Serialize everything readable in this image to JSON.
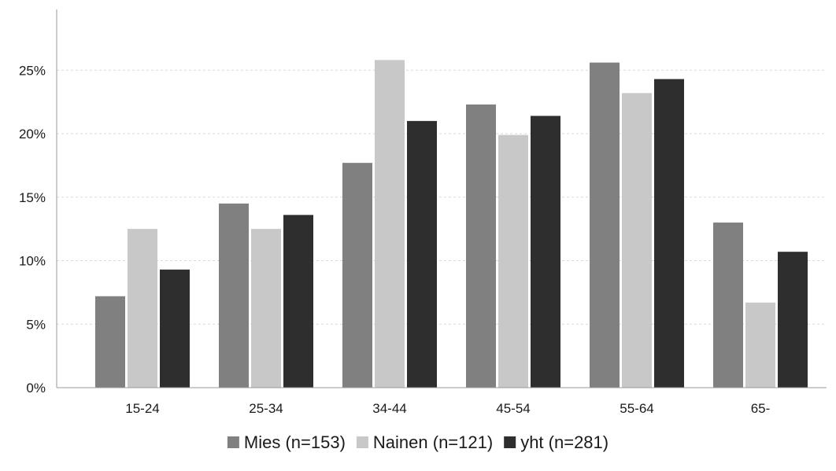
{
  "chart_data": {
    "type": "bar",
    "title": "",
    "xlabel": "",
    "ylabel": "",
    "categories": [
      "15-24",
      "25-34",
      "34-44",
      "45-54",
      "55-64",
      "65-"
    ],
    "series": [
      {
        "name": "Mies (n=153)",
        "color": "#808080",
        "values": [
          7.2,
          14.5,
          17.7,
          22.3,
          25.6,
          13.0
        ]
      },
      {
        "name": "Nainen (n=121)",
        "color": "#c8c8c8",
        "values": [
          12.5,
          12.5,
          25.8,
          19.9,
          23.2,
          6.7
        ]
      },
      {
        "name": "yht (n=281)",
        "color": "#2e2e2e",
        "values": [
          9.3,
          13.6,
          21.0,
          21.4,
          24.3,
          10.7
        ]
      }
    ],
    "ylim": [
      0,
      30
    ],
    "yticks": [
      0,
      5,
      10,
      15,
      20,
      25
    ],
    "ytick_labels": [
      "0%",
      "5%",
      "10%",
      "15%",
      "20%",
      "25%"
    ],
    "grid": true,
    "legend_position": "bottom"
  }
}
